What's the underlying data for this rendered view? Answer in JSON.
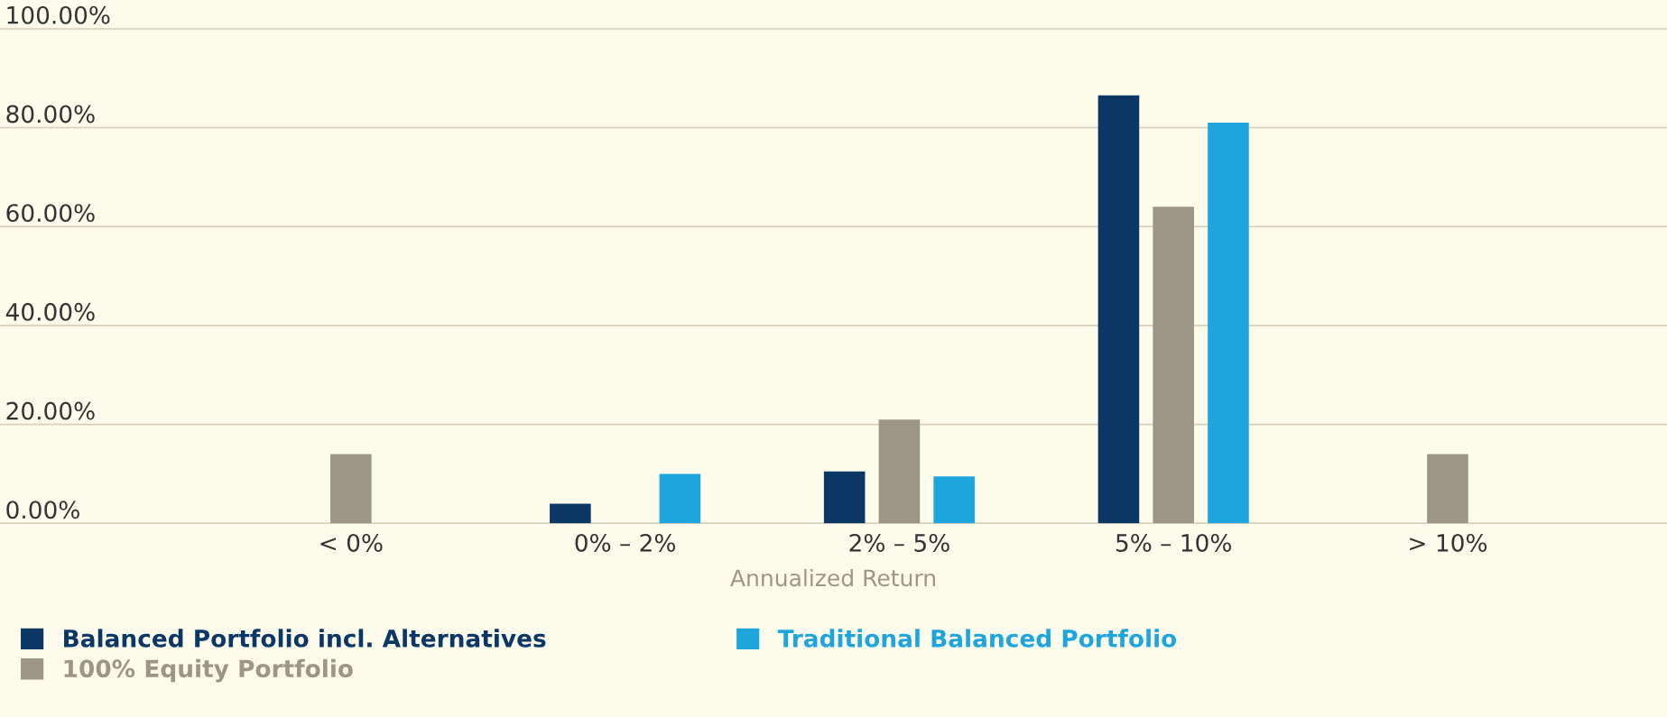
{
  "chart_data": {
    "type": "bar",
    "xlabel": "Annualized Return",
    "categories": [
      "< 0%",
      "0% – 2%",
      "2% – 5%",
      "5% – 10%",
      "> 10%"
    ],
    "series": [
      {
        "name": "Balanced Portfolio incl. Alternatives",
        "color": "#0a3764",
        "values": [
          null,
          4,
          10.5,
          86.5,
          null
        ]
      },
      {
        "name": "100% Equity Portfolio",
        "color": "#9e9589",
        "values": [
          14,
          null,
          21,
          64,
          14
        ]
      },
      {
        "name": "Traditional Balanced Portfolio",
        "color": "#1ea6dc",
        "values": [
          null,
          10,
          9.5,
          81,
          null
        ]
      }
    ],
    "ylim": [
      0,
      100
    ],
    "yticks": [
      {
        "value": 0,
        "label": "0.00%"
      },
      {
        "value": 20,
        "label": "20.00%"
      },
      {
        "value": 40,
        "label": "40.00%"
      },
      {
        "value": 60,
        "label": "60.00%"
      },
      {
        "value": 80,
        "label": "80.00%"
      },
      {
        "value": 100,
        "label": "100.00%"
      }
    ],
    "grid": "y",
    "legend": "bottom"
  }
}
